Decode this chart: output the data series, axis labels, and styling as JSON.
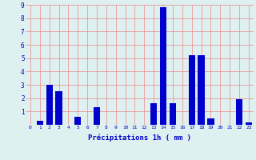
{
  "hours": [
    0,
    1,
    2,
    3,
    4,
    5,
    6,
    7,
    8,
    9,
    10,
    11,
    12,
    13,
    14,
    15,
    16,
    17,
    18,
    19,
    20,
    21,
    22,
    23
  ],
  "precip": [
    0,
    0.3,
    3.0,
    2.5,
    0,
    0.6,
    0,
    1.3,
    0,
    0,
    0,
    0,
    0,
    1.6,
    8.8,
    1.6,
    0,
    5.2,
    5.2,
    0.5,
    0,
    0,
    1.9,
    0.2
  ],
  "bar_color": "#0000cc",
  "bg_color": "#dff0f0",
  "grid_color": "#ee8888",
  "tick_color": "#0000bb",
  "xlabel": "Précipitations 1h ( mm )",
  "xlabel_color": "#0000cc",
  "ylim": [
    0,
    9
  ],
  "yticks": [
    0,
    1,
    2,
    3,
    4,
    5,
    6,
    7,
    8,
    9
  ],
  "bar_width": 0.7
}
